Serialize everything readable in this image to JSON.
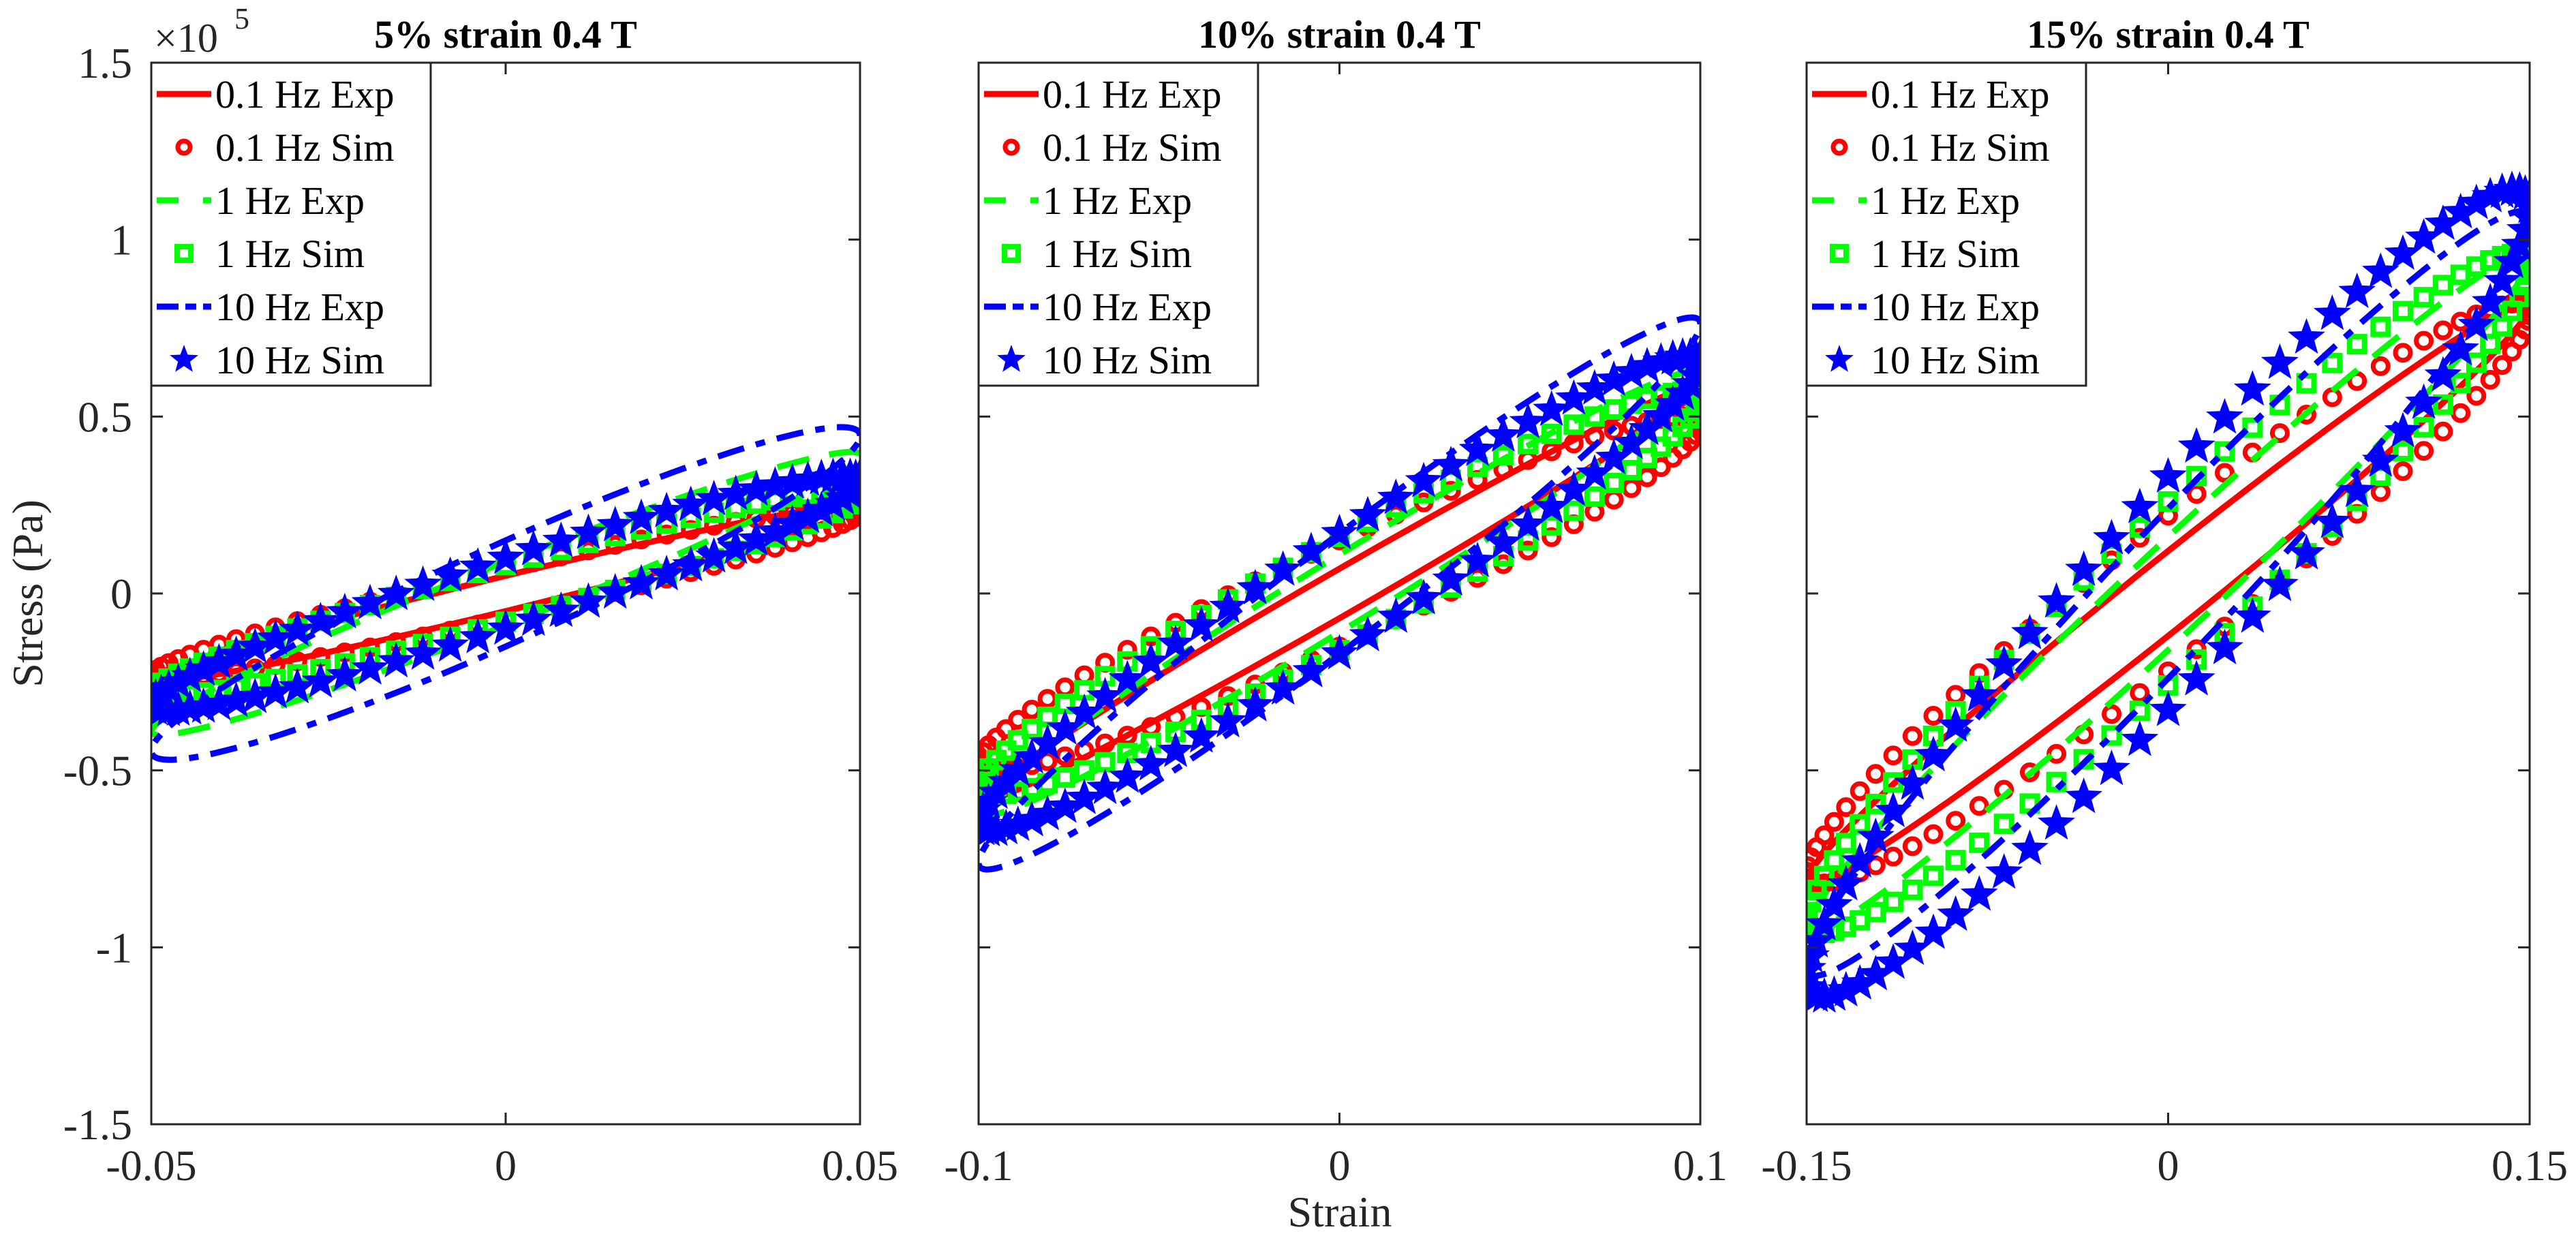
{
  "chart_data": {
    "type": "line",
    "figure": {
      "ylabel": "Stress (Pa)",
      "xlabel": "Strain",
      "y_exponent_base": "×10",
      "y_exponent_power": "5",
      "ylim": [
        -1.5,
        1.5
      ],
      "yticks": [
        -1.5,
        -1,
        -0.5,
        0,
        0.5,
        1,
        1.5
      ],
      "ytick_labels": [
        "-1.5",
        "-1",
        "-0.5",
        "0",
        "0.5",
        "1",
        "1.5"
      ],
      "y_units_multiplier": 100000,
      "legend_position": "top-left"
    },
    "legend": [
      {
        "label": "0.1 Hz Exp",
        "color": "#ff0000",
        "style": "solid",
        "marker": "none"
      },
      {
        "label": "0.1 Hz Sim",
        "color": "#ff0000",
        "style": "none",
        "marker": "circle"
      },
      {
        "label": "1 Hz Exp",
        "color": "#00ff00",
        "style": "dashed",
        "marker": "none"
      },
      {
        "label": "1 Hz Sim",
        "color": "#00ff00",
        "style": "none",
        "marker": "square"
      },
      {
        "label": "10 Hz Exp",
        "color": "#0000ff",
        "style": "dashdot",
        "marker": "none"
      },
      {
        "label": "10 Hz Sim",
        "color": "#0000ff",
        "style": "none",
        "marker": "star"
      }
    ],
    "subplots": [
      {
        "title": "5% strain 0.4 T",
        "xlim": [
          -0.05,
          0.05
        ],
        "xticks": [
          -0.05,
          0,
          0.05
        ],
        "xtick_labels": [
          "-0.05",
          "0",
          "0.05"
        ],
        "series": [
          {
            "name": "0.1 Hz Exp",
            "strain_amplitude": 0.05,
            "peak_stress": 0.25,
            "half_gap_at_zero": 0.05
          },
          {
            "name": "0.1 Hz Sim",
            "strain_amplitude": 0.05,
            "peak_stress": 0.24,
            "half_gap_at_zero": 0.07
          },
          {
            "name": "1 Hz Exp",
            "strain_amplitude": 0.05,
            "peak_stress": 0.4,
            "half_gap_at_zero": 0.09
          },
          {
            "name": "1 Hz Sim",
            "strain_amplitude": 0.05,
            "peak_stress": 0.29,
            "half_gap_at_zero": 0.08
          },
          {
            "name": "10 Hz Exp",
            "strain_amplitude": 0.05,
            "peak_stress": 0.47,
            "half_gap_at_zero": 0.15
          },
          {
            "name": "10 Hz Sim",
            "strain_amplitude": 0.05,
            "peak_stress": 0.33,
            "half_gap_at_zero": 0.1
          }
        ]
      },
      {
        "title": "10% strain 0.4 T",
        "xlim": [
          -0.1,
          0.1
        ],
        "xticks": [
          -0.1,
          0,
          0.1
        ],
        "xtick_labels": [
          "-0.1",
          "0",
          "0.1"
        ],
        "series": [
          {
            "name": "0.1 Hz Exp",
            "strain_amplitude": 0.1,
            "peak_stress": 0.59,
            "half_gap_at_zero": 0.07
          },
          {
            "name": "0.1 Hz Sim",
            "strain_amplitude": 0.1,
            "peak_stress": 0.5,
            "half_gap_at_zero": 0.15
          },
          {
            "name": "1 Hz Exp",
            "strain_amplitude": 0.1,
            "peak_stress": 0.63,
            "half_gap_at_zero": 0.11
          },
          {
            "name": "1 Hz Sim",
            "strain_amplitude": 0.1,
            "peak_stress": 0.57,
            "half_gap_at_zero": 0.16
          },
          {
            "name": "10 Hz Exp",
            "strain_amplitude": 0.1,
            "peak_stress": 0.78,
            "half_gap_at_zero": 0.17
          },
          {
            "name": "10 Hz Sim",
            "strain_amplitude": 0.1,
            "peak_stress": 0.67,
            "half_gap_at_zero": 0.17
          }
        ]
      },
      {
        "title": "15% strain 0.4 T",
        "xlim": [
          -0.15,
          0.15
        ],
        "xticks": [
          -0.15,
          0,
          0.15
        ],
        "xtick_labels": [
          "-0.15",
          "0",
          "0.15"
        ],
        "series": [
          {
            "name": "0.1 Hz Exp",
            "strain_amplitude": 0.15,
            "peak_stress": 0.82,
            "half_gap_at_zero": 0.12
          },
          {
            "name": "0.1 Hz Sim",
            "strain_amplitude": 0.15,
            "peak_stress": 0.82,
            "half_gap_at_zero": 0.22
          },
          {
            "name": "1 Hz Exp",
            "strain_amplitude": 0.15,
            "peak_stress": 0.96,
            "half_gap_at_zero": 0.16
          },
          {
            "name": "1 Hz Sim",
            "strain_amplitude": 0.15,
            "peak_stress": 0.96,
            "half_gap_at_zero": 0.26
          },
          {
            "name": "10 Hz Exp",
            "strain_amplitude": 0.15,
            "peak_stress": 1.08,
            "half_gap_at_zero": 0.24
          },
          {
            "name": "10 Hz Sim",
            "strain_amplitude": 0.15,
            "peak_stress": 1.14,
            "half_gap_at_zero": 0.33
          }
        ]
      }
    ]
  }
}
